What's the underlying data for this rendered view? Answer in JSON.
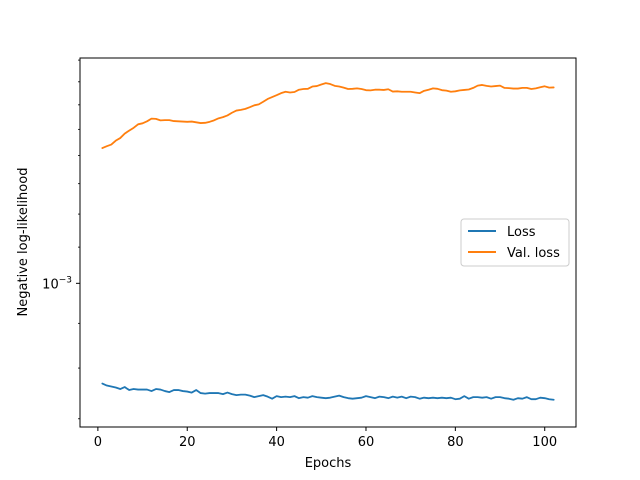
{
  "chart_data": {
    "type": "line",
    "xlabel": "Epochs",
    "ylabel": "Negative log-likelihood",
    "xlim": [
      -4,
      107
    ],
    "ylim": [
      0.000685,
      0.00181
    ],
    "yscale": "log",
    "xticks": [
      0,
      20,
      40,
      60,
      80,
      100
    ],
    "yticks": [
      {
        "value": 0.001,
        "base": "10",
        "exp": "−3"
      }
    ],
    "grid": false,
    "legend_position": "center-right",
    "series": [
      {
        "name": "Loss",
        "color": "#1f77b4",
        "x": [
          1,
          2,
          3,
          4,
          5,
          6,
          7,
          8,
          9,
          10,
          11,
          12,
          13,
          14,
          15,
          16,
          17,
          18,
          19,
          20,
          21,
          22,
          23,
          24,
          25,
          26,
          27,
          28,
          29,
          30,
          31,
          32,
          33,
          34,
          35,
          36,
          37,
          38,
          39,
          40,
          41,
          42,
          43,
          44,
          45,
          46,
          47,
          48,
          49,
          50,
          51,
          52,
          53,
          54,
          55,
          56,
          57,
          58,
          59,
          60,
          61,
          62,
          63,
          64,
          65,
          66,
          67,
          68,
          69,
          70,
          71,
          72,
          73,
          74,
          75,
          76,
          77,
          78,
          79,
          80,
          81,
          82,
          83,
          84,
          85,
          86,
          87,
          88,
          89,
          90,
          91,
          92,
          93,
          94,
          95,
          96,
          97,
          98,
          99,
          100,
          101,
          102
        ],
        "values": [
          0.000768,
          0.000764,
          0.000762,
          0.00076,
          0.000757,
          0.000761,
          0.000755,
          0.000757,
          0.000756,
          0.000756,
          0.000756,
          0.000753,
          0.000757,
          0.000756,
          0.000753,
          0.000751,
          0.000755,
          0.000755,
          0.000753,
          0.000752,
          0.00075,
          0.000755,
          0.000749,
          0.000748,
          0.000749,
          0.000749,
          0.000749,
          0.000747,
          0.00075,
          0.000747,
          0.000745,
          0.000746,
          0.000746,
          0.000744,
          0.000741,
          0.000743,
          0.000745,
          0.000742,
          0.000738,
          0.000743,
          0.000741,
          0.000742,
          0.000741,
          0.000743,
          0.000739,
          0.000741,
          0.00074,
          0.000743,
          0.000741,
          0.00074,
          0.000739,
          0.00074,
          0.000742,
          0.000744,
          0.000741,
          0.000739,
          0.000738,
          0.000739,
          0.00074,
          0.000743,
          0.000741,
          0.000739,
          0.000742,
          0.000741,
          0.000739,
          0.000742,
          0.00074,
          0.000742,
          0.000739,
          0.000742,
          0.000741,
          0.000738,
          0.00074,
          0.000739,
          0.00074,
          0.000739,
          0.00074,
          0.000739,
          0.00074,
          0.000737,
          0.000738,
          0.000743,
          0.000738,
          0.000741,
          0.000741,
          0.00074,
          0.000741,
          0.000738,
          0.000741,
          0.000741,
          0.000739,
          0.000738,
          0.000736,
          0.000739,
          0.000738,
          0.000741,
          0.000737,
          0.000737,
          0.00074,
          0.000739,
          0.000737,
          0.000736
        ]
      },
      {
        "name": "Val. loss",
        "color": "#ff7f0e",
        "x": [
          1,
          2,
          3,
          4,
          5,
          6,
          7,
          8,
          9,
          10,
          11,
          12,
          13,
          14,
          15,
          16,
          17,
          18,
          19,
          20,
          21,
          22,
          23,
          24,
          25,
          26,
          27,
          28,
          29,
          30,
          31,
          32,
          33,
          34,
          35,
          36,
          37,
          38,
          39,
          40,
          41,
          42,
          43,
          44,
          45,
          46,
          47,
          48,
          49,
          50,
          51,
          52,
          53,
          54,
          55,
          56,
          57,
          58,
          59,
          60,
          61,
          62,
          63,
          64,
          65,
          66,
          67,
          68,
          69,
          70,
          71,
          72,
          73,
          74,
          75,
          76,
          77,
          78,
          79,
          80,
          81,
          82,
          83,
          84,
          85,
          86,
          87,
          88,
          89,
          90,
          91,
          92,
          93,
          94,
          95,
          96,
          97,
          98,
          99,
          100,
          101,
          102
        ],
        "values": [
          0.001428,
          0.001435,
          0.001441,
          0.001456,
          0.001466,
          0.001483,
          0.001495,
          0.001506,
          0.00152,
          0.001524,
          0.001532,
          0.001543,
          0.001542,
          0.001536,
          0.001537,
          0.001537,
          0.001533,
          0.001532,
          0.001531,
          0.00153,
          0.001531,
          0.001528,
          0.001525,
          0.001526,
          0.00153,
          0.001536,
          0.001544,
          0.001549,
          0.001556,
          0.001567,
          0.001576,
          0.001579,
          0.001583,
          0.00159,
          0.001598,
          0.001602,
          0.001613,
          0.001625,
          0.001633,
          0.001641,
          0.00165,
          0.001656,
          0.001653,
          0.001655,
          0.001665,
          0.001668,
          0.001669,
          0.001679,
          0.001681,
          0.001688,
          0.001694,
          0.00169,
          0.001682,
          0.001679,
          0.001674,
          0.001668,
          0.001669,
          0.001671,
          0.001668,
          0.001663,
          0.001662,
          0.001665,
          0.001665,
          0.001664,
          0.001667,
          0.001657,
          0.001658,
          0.001656,
          0.001656,
          0.001656,
          0.001653,
          0.00165,
          0.00166,
          0.001665,
          0.001671,
          0.001669,
          0.001663,
          0.001661,
          0.001656,
          0.001658,
          0.001662,
          0.001664,
          0.001666,
          0.001673,
          0.001683,
          0.001686,
          0.001682,
          0.001679,
          0.001681,
          0.001683,
          0.001673,
          0.001672,
          0.00167,
          0.00167,
          0.001673,
          0.001673,
          0.001668,
          0.001671,
          0.001676,
          0.00168,
          0.001674,
          0.001675
        ]
      }
    ]
  }
}
